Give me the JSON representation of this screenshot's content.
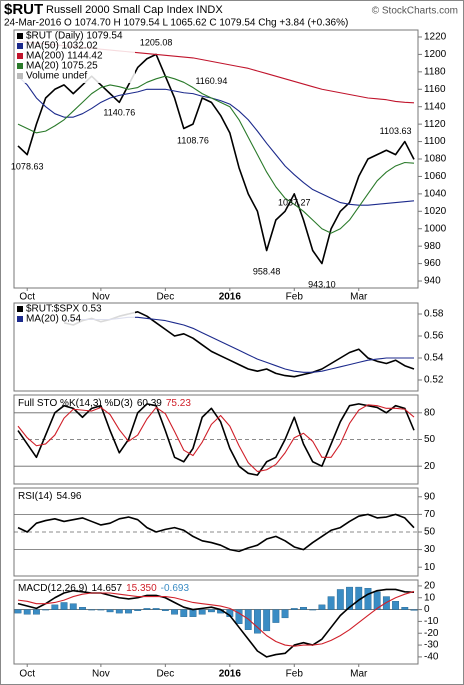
{
  "header": {
    "symbol": "$RUT",
    "name": "Russell 2000 Small Cap Index INDX",
    "quote": "24-Mar-2016   O 1074.70  H 1079.54  L 1065.62  C 1079.54  Chg +3.84 (+0.36%)",
    "watermark": "© StockCharts.com"
  },
  "chart_data": [
    {
      "type": "line",
      "categories": [
        null,
        "Oct",
        null,
        null,
        null,
        null,
        null,
        null,
        null,
        "Nov",
        null,
        null,
        null,
        null,
        null,
        null,
        "Dec",
        null,
        null,
        null,
        null,
        null,
        null,
        "2016",
        null,
        null,
        null,
        null,
        null,
        null,
        "Feb",
        null,
        null,
        null,
        null,
        null,
        null,
        "Mar",
        null,
        null,
        null,
        null,
        null,
        null
      ],
      "ylim": [
        932,
        1228
      ],
      "yticks": [
        940,
        960,
        980,
        1000,
        1020,
        1040,
        1060,
        1080,
        1100,
        1120,
        1140,
        1160,
        1180,
        1200,
        1220
      ],
      "series": [
        {
          "name": "$RUT (Daily) 1079.54",
          "color": "#000000",
          "values": [
            1095,
            1085,
            1120,
            1150,
            1160,
            1165,
            1155,
            1165,
            1175,
            1165,
            1155,
            1145,
            1165,
            1185,
            1195,
            1200,
            1175,
            1150,
            1115,
            1120,
            1150,
            1145,
            1130,
            1110,
            1070,
            1040,
            1020,
            975,
            1010,
            1020,
            1040,
            1010,
            975,
            960,
            1000,
            1020,
            1030,
            1060,
            1080,
            1085,
            1090,
            1085,
            1100,
            1079.54
          ]
        },
        {
          "name": "MA(50) 1032.02",
          "color": "#1c2a8c",
          "values": [
            1175,
            1165,
            1150,
            1140,
            1132,
            1128,
            1128,
            1132,
            1138,
            1145,
            1150,
            1153,
            1155,
            1157,
            1160,
            1160,
            1160,
            1158,
            1156,
            1155,
            1152,
            1150,
            1147,
            1143,
            1135,
            1125,
            1112,
            1098,
            1085,
            1072,
            1062,
            1053,
            1045,
            1040,
            1035,
            1030,
            1028,
            1027,
            1027,
            1028,
            1029,
            1030,
            1031,
            1032.02
          ]
        },
        {
          "name": "MA(200) 1144.42",
          "color": "#c0142c",
          "values": [
            1215,
            1214,
            1213,
            1212,
            1211,
            1210,
            1209,
            1208,
            1207,
            1206,
            1205,
            1204,
            1203,
            1202,
            1201,
            1200,
            1199,
            1198,
            1197,
            1196,
            1194,
            1192,
            1190,
            1188,
            1186,
            1184,
            1181,
            1178,
            1175,
            1172,
            1169,
            1166,
            1163,
            1160,
            1158,
            1156,
            1154,
            1152,
            1150,
            1149,
            1148,
            1146,
            1145,
            1144.42
          ]
        },
        {
          "name": "MA(20) 1075.25",
          "color": "#2a7a2a",
          "values": [
            1120,
            1115,
            1110,
            1112,
            1118,
            1125,
            1135,
            1145,
            1155,
            1162,
            1165,
            1163,
            1160,
            1162,
            1168,
            1172,
            1175,
            1172,
            1168,
            1162,
            1155,
            1150,
            1145,
            1140,
            1125,
            1105,
            1085,
            1065,
            1048,
            1035,
            1028,
            1020,
            1010,
            1000,
            995,
            1000,
            1010,
            1025,
            1040,
            1055,
            1065,
            1072,
            1076,
            1075.25
          ]
        }
      ],
      "legend_extra": [
        "Volume undef"
      ],
      "annotations": [
        {
          "x": 1,
          "value": 1078.63,
          "label": "1078.63"
        },
        {
          "x": 11,
          "value": 1140.76,
          "label": "1140.76"
        },
        {
          "x": 15,
          "value": 1205.08,
          "label": "1205.08"
        },
        {
          "x": 19,
          "value": 1108.76,
          "label": "1108.76"
        },
        {
          "x": 21,
          "value": 1160.94,
          "label": "1160.94"
        },
        {
          "x": 27,
          "value": 958.48,
          "label": "958.48"
        },
        {
          "x": 30,
          "value": 1037.27,
          "label": "1037.27"
        },
        {
          "x": 33,
          "value": 943.1,
          "label": "943.10"
        },
        {
          "x": 41,
          "value": 1103.63,
          "label": "1103.63"
        }
      ]
    },
    {
      "type": "line",
      "ylim": [
        0.51,
        0.59
      ],
      "yticks": [
        0.52,
        0.54,
        0.56,
        0.58
      ],
      "series": [
        {
          "name": "$RUT:$SPX 0.53",
          "color": "#000000",
          "values": [
            null,
            null,
            null,
            null,
            null,
            0.572,
            0.57,
            0.574,
            0.576,
            0.573,
            0.575,
            0.578,
            0.58,
            0.582,
            0.578,
            0.572,
            0.566,
            0.56,
            0.562,
            0.558,
            0.552,
            0.546,
            0.542,
            0.538,
            0.534,
            0.53,
            0.528,
            0.53,
            0.526,
            0.524,
            0.523,
            0.525,
            0.527,
            0.53,
            0.535,
            0.54,
            0.545,
            0.548,
            0.54,
            0.537,
            0.535,
            0.538,
            0.533,
            0.53
          ]
        },
        {
          "name": "MA(20) 0.54",
          "color": "#1c2a8c",
          "values": [
            null,
            null,
            null,
            null,
            null,
            0.575,
            0.575,
            0.575,
            0.575,
            0.575,
            0.575,
            0.576,
            0.577,
            0.577,
            0.576,
            0.575,
            0.574,
            0.572,
            0.57,
            0.567,
            0.563,
            0.559,
            0.555,
            0.551,
            0.547,
            0.543,
            0.539,
            0.536,
            0.533,
            0.53,
            0.528,
            0.527,
            0.527,
            0.528,
            0.53,
            0.532,
            0.534,
            0.536,
            0.538,
            0.539,
            0.54,
            0.54,
            0.54,
            0.54
          ]
        }
      ]
    },
    {
      "type": "line",
      "title": "Full STO %K(14,3) %D(3)",
      "ylim": [
        0,
        100
      ],
      "yticks": [
        20,
        50,
        80
      ],
      "hlines": [
        80,
        50,
        20
      ],
      "hline_styles": [
        "solid",
        "dashed",
        "solid"
      ],
      "series": [
        {
          "name": "60.39",
          "color": "#000000",
          "values": [
            60,
            45,
            30,
            55,
            80,
            88,
            85,
            75,
            85,
            88,
            60,
            35,
            50,
            80,
            90,
            88,
            60,
            30,
            25,
            40,
            75,
            85,
            70,
            40,
            20,
            12,
            10,
            25,
            30,
            50,
            75,
            45,
            25,
            20,
            45,
            70,
            88,
            90,
            88,
            86,
            80,
            88,
            85,
            60.39
          ]
        },
        {
          "name": "75.23",
          "color": "#d0202a",
          "values": [
            65,
            52,
            43,
            45,
            55,
            74,
            84,
            83,
            82,
            86,
            78,
            61,
            48,
            55,
            73,
            86,
            79,
            59,
            38,
            32,
            47,
            67,
            77,
            65,
            43,
            24,
            14,
            16,
            22,
            35,
            52,
            57,
            48,
            30,
            30,
            45,
            68,
            83,
            89,
            88,
            85,
            85,
            84,
            75.23
          ]
        }
      ]
    },
    {
      "type": "line",
      "title": "RSI(14)",
      "ylim": [
        0,
        100
      ],
      "yticks": [
        10,
        30,
        50,
        70,
        90
      ],
      "hlines": [
        70,
        50,
        30
      ],
      "hline_styles": [
        "solid",
        "dashed",
        "solid"
      ],
      "series": [
        {
          "name": "54.96",
          "color": "#000000",
          "values": [
            55,
            50,
            60,
            63,
            65,
            62,
            64,
            66,
            62,
            58,
            60,
            65,
            67,
            64,
            55,
            50,
            53,
            55,
            52,
            45,
            40,
            38,
            35,
            30,
            28,
            32,
            35,
            42,
            45,
            40,
            33,
            30,
            38,
            45,
            52,
            55,
            62,
            68,
            70,
            66,
            67,
            70,
            66,
            54.96
          ]
        }
      ]
    },
    {
      "type": "line",
      "title": "MACD(12,26,9)",
      "categories": [
        null,
        "Oct",
        null,
        null,
        null,
        null,
        null,
        null,
        null,
        "Nov",
        null,
        null,
        null,
        null,
        null,
        null,
        "Dec",
        null,
        null,
        null,
        null,
        null,
        null,
        "2016",
        null,
        null,
        null,
        null,
        null,
        null,
        "Feb",
        null,
        null,
        null,
        null,
        null,
        null,
        "Mar",
        null,
        null,
        null,
        null,
        null,
        null
      ],
      "ylim": [
        -46,
        25
      ],
      "yticks": [
        -40,
        -30,
        -20,
        -10,
        0,
        10,
        20
      ],
      "hlines": [
        0
      ],
      "hline_styles": [
        "solid"
      ],
      "series": [
        {
          "name": "14.657",
          "color": "#000000",
          "values": [
            5,
            3,
            1,
            5,
            10,
            14,
            16,
            15,
            14,
            14,
            12,
            10,
            9,
            10,
            12,
            12,
            10,
            6,
            2,
            0,
            1,
            2,
            0,
            -5,
            -15,
            -25,
            -35,
            -40,
            -38,
            -37,
            -30,
            -28,
            -30,
            -25,
            -15,
            -5,
            2,
            8,
            13,
            16,
            17,
            17,
            15,
            14.657
          ]
        },
        {
          "name": "15.350",
          "color": "#d0202a",
          "values": [
            8,
            7,
            5,
            5,
            6,
            8,
            11,
            13,
            14,
            14,
            14,
            13,
            12,
            11,
            11,
            11,
            11,
            10,
            8,
            6,
            5,
            4,
            3,
            1,
            -3,
            -8,
            -15,
            -22,
            -27,
            -30,
            -31,
            -30,
            -30,
            -29,
            -26,
            -22,
            -17,
            -11,
            -5,
            1,
            6,
            10,
            13,
            15.35
          ]
        },
        {
          "name": "-0.693",
          "color": "#3a8cc4",
          "type": "bar",
          "values": [
            -3,
            -4,
            -4,
            0,
            4,
            6,
            5,
            2,
            0,
            0,
            -2,
            -3,
            -3,
            -1,
            1,
            1,
            -1,
            -4,
            -6,
            -6,
            -4,
            -2,
            -3,
            -6,
            -12,
            -17,
            -20,
            -18,
            -11,
            -7,
            1,
            2,
            0,
            4,
            11,
            17,
            19,
            19,
            18,
            15,
            11,
            7,
            2,
            -0.693
          ]
        }
      ]
    }
  ]
}
